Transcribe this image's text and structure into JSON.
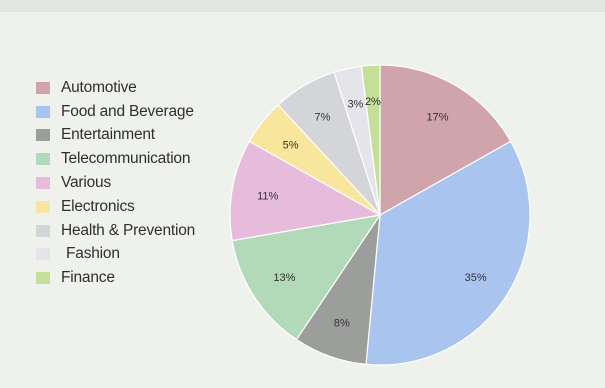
{
  "chart_data": {
    "type": "pie",
    "title": "",
    "legend_position": "left",
    "start_angle_deg": 0,
    "direction": "clockwise",
    "slices": [
      {
        "label": "Automotive",
        "value": 17,
        "display": "17%",
        "color": "#cfa4ab"
      },
      {
        "label": "Food and Beverage",
        "value": 35,
        "display": "35%",
        "color": "#a9c5ef"
      },
      {
        "label": "Entertainment",
        "value": 8,
        "display": "8%",
        "color": "#9c9e9c"
      },
      {
        "label": "Telecommunication",
        "value": 13,
        "display": "13%",
        "color": "#b2dab9"
      },
      {
        "label": "Various",
        "value": 11,
        "display": "11%",
        "color": "#e6bbdb"
      },
      {
        "label": "Electronics",
        "value": 5,
        "display": "5%",
        "color": "#f7e69b"
      },
      {
        "label": "Health & Prevention",
        "value": 7,
        "display": "7%",
        "color": "#d4d5d8"
      },
      {
        "label": "Fashion",
        "value": 3,
        "display": "3%",
        "color": "#e5e4ea"
      },
      {
        "label": "Finance",
        "value": 2,
        "display": "2%",
        "color": "#c6df98"
      }
    ]
  }
}
